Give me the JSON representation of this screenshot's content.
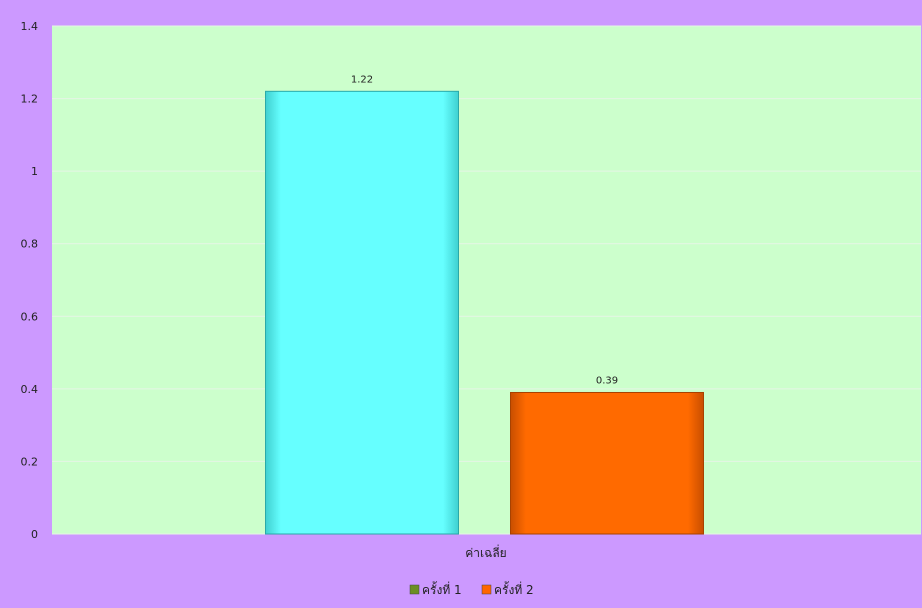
{
  "chart_data": {
    "type": "bar",
    "categories": [
      "ค่าเฉลี่ย"
    ],
    "series": [
      {
        "name": "ครั้งที่ 1",
        "values": [
          1.22
        ],
        "color": "#66FFFF",
        "legend_color": "#6B8E23"
      },
      {
        "name": "ครั้งที่ 2",
        "values": [
          0.39
        ],
        "color": "#FF6600",
        "legend_color": "#FF6600"
      }
    ],
    "data_labels": [
      "1.22",
      "0.39"
    ],
    "yticks": [
      "0",
      "0.2",
      "0.4",
      "0.6",
      "0.8",
      "1",
      "1.2",
      "1.4"
    ],
    "ylim": [
      0,
      1.4
    ],
    "grid": true,
    "legend_position": "bottom",
    "colors": {
      "background": "#CC99FF",
      "plot_area": "#CCFFCC",
      "gridline": "#E6F5E6"
    }
  }
}
